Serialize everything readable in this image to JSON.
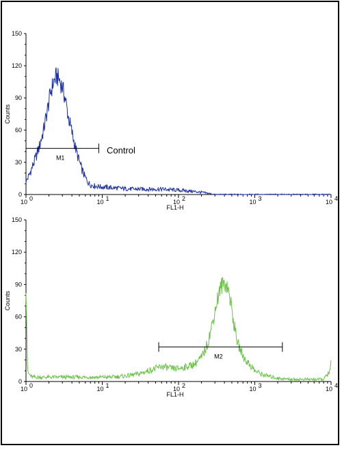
{
  "chart_data": [
    {
      "type": "area",
      "title": "",
      "xlabel": "FL1-H",
      "ylabel": "Counts",
      "xscale": "log",
      "xlim": [
        1,
        10000
      ],
      "ylim": [
        0,
        150
      ],
      "x_tick_labels": [
        "10",
        "10",
        "10",
        "10",
        "10"
      ],
      "x_tick_exponents": [
        "0",
        "1",
        "2",
        "3",
        "4"
      ],
      "y_tick_labels": [
        "0",
        "30",
        "60",
        "90",
        "120",
        "150"
      ],
      "line_color": "#1a2ea8",
      "series": [
        {
          "x": [
            1.0,
            1.1,
            1.2,
            1.35,
            1.5,
            1.7,
            1.9,
            2.1,
            2.3,
            2.5,
            2.7,
            3.0,
            3.3,
            3.6,
            4.0,
            4.4,
            4.8,
            5.3,
            5.8,
            6.4,
            7.0,
            8.0,
            10,
            15,
            25,
            40,
            60,
            100,
            150,
            200,
            250,
            300,
            10000
          ],
          "y": [
            12,
            18,
            25,
            35,
            45,
            60,
            78,
            95,
            105,
            110,
            108,
            100,
            88,
            72,
            58,
            45,
            35,
            25,
            18,
            12,
            9,
            8,
            7,
            6,
            5,
            5,
            5,
            4,
            3,
            2,
            1,
            0,
            0
          ]
        }
      ],
      "markers": [
        {
          "label": "M1",
          "x_start": 1.0,
          "x_end": 9.0,
          "y": 43
        }
      ],
      "annotations": [
        "Control"
      ]
    },
    {
      "type": "area",
      "title": "",
      "xlabel": "FL1-H",
      "ylabel": "Counts",
      "xscale": "log",
      "xlim": [
        1,
        10000
      ],
      "ylim": [
        0,
        150
      ],
      "x_tick_labels": [
        "10",
        "10",
        "10",
        "10",
        "10"
      ],
      "x_tick_exponents": [
        "0",
        "1",
        "2",
        "3",
        "4"
      ],
      "y_tick_labels": [
        "0",
        "30",
        "60",
        "90",
        "120",
        "150"
      ],
      "line_color": "#6cc24a",
      "series": [
        {
          "x": [
            1.0,
            1.02,
            1.05,
            1.2,
            1.5,
            2,
            3,
            5,
            8,
            12,
            20,
            30,
            40,
            50,
            60,
            70,
            80,
            100,
            130,
            160,
            200,
            240,
            280,
            320,
            360,
            400,
            440,
            480,
            520,
            560,
            600,
            660,
            720,
            800,
            900,
            1000,
            1200,
            1500,
            2000,
            3000,
            5000,
            8000,
            9800,
            10000
          ],
          "y": [
            90,
            60,
            8,
            4,
            4,
            4,
            4,
            4,
            4,
            4,
            5,
            7,
            10,
            12,
            14,
            13,
            12,
            12,
            14,
            16,
            22,
            35,
            55,
            75,
            88,
            92,
            88,
            75,
            58,
            45,
            35,
            28,
            22,
            18,
            14,
            10,
            7,
            5,
            3,
            2,
            2,
            2,
            10,
            20
          ]
        }
      ],
      "markers": [
        {
          "label": "M2",
          "x_start": 55,
          "x_end": 2300,
          "y": 32
        }
      ],
      "annotations": []
    }
  ]
}
